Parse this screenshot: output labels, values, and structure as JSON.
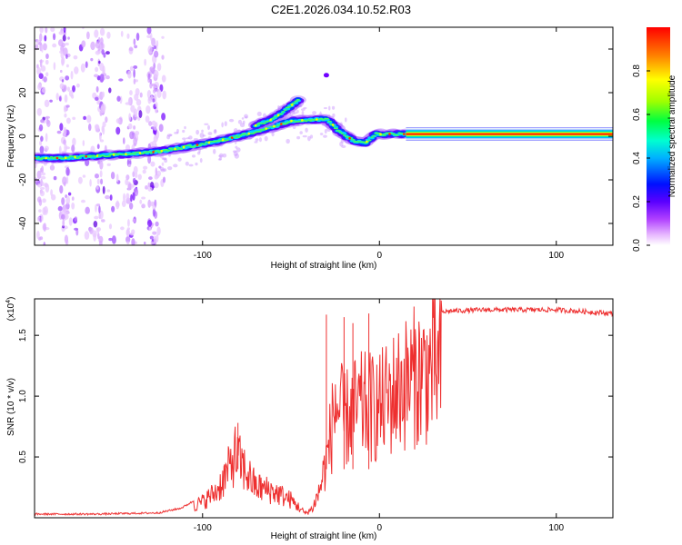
{
  "title": "C2E1.2026.034.10.52.R03",
  "chart_data": [
    {
      "type": "heatmap",
      "name": "spectrogram",
      "xlabel": "Height of straight line (km)",
      "ylabel": "Frequency (Hz)",
      "xlim": [
        -195,
        132
      ],
      "ylim": [
        -50,
        50
      ],
      "x_ticks": [
        -100,
        0,
        100
      ],
      "y_ticks": [
        -40,
        -20,
        0,
        20,
        40
      ],
      "colorbar": {
        "label": "Normalized spectral amplitude",
        "range": [
          0,
          1
        ],
        "ticks": [
          0.0,
          0.2,
          0.4,
          0.6,
          0.8
        ],
        "colors": [
          "#ffffff",
          "#d070ff",
          "#6a00ff",
          "#0000ff",
          "#00c8ff",
          "#00ff80",
          "#aaff00",
          "#ffff00",
          "#ff8000",
          "#ff0000"
        ]
      },
      "tracks": [
        {
          "name": "main-track",
          "points": [
            [
              -195,
              -10
            ],
            [
              -180,
              -10
            ],
            [
              -160,
              -9
            ],
            [
              -140,
              -8
            ],
            [
              -125,
              -7
            ],
            [
              -110,
              -5
            ],
            [
              -90,
              -2
            ],
            [
              -70,
              2
            ],
            [
              -50,
              7
            ],
            [
              -30,
              8
            ],
            [
              -22,
              2
            ],
            [
              -15,
              -2
            ],
            [
              -8,
              -3
            ],
            [
              -2,
              1
            ],
            [
              5,
              1
            ],
            [
              15,
              1
            ],
            [
              132,
              1
            ]
          ]
        },
        {
          "name": "upper-branch",
          "points": [
            [
              -70,
              5
            ],
            [
              -60,
              8
            ],
            [
              -50,
              14
            ],
            [
              -45,
              17
            ]
          ]
        }
      ],
      "outlier": {
        "x": -30,
        "y": 28
      },
      "noise_region_x": [
        -195,
        -120
      ]
    },
    {
      "type": "line",
      "name": "snr",
      "xlabel": "Height of straight line (km)",
      "ylabel": "SNR (10 * v/v)",
      "y_multiplier": "(x10",
      "y_multiplier_exp": "4",
      "y_multiplier_close": ")",
      "xlim": [
        -195,
        132
      ],
      "ylim": [
        0,
        1.8
      ],
      "x_ticks": [
        -100,
        0,
        100
      ],
      "y_ticks": [
        0.5,
        1.0,
        1.5
      ],
      "color": "#ee3030",
      "envelope": [
        [
          -195,
          0.03
        ],
        [
          -160,
          0.03
        ],
        [
          -125,
          0.04
        ],
        [
          -112,
          0.08
        ],
        [
          -100,
          0.18
        ],
        [
          -92,
          0.3
        ],
        [
          -85,
          0.55
        ],
        [
          -82,
          0.72
        ],
        [
          -78,
          0.6
        ],
        [
          -70,
          0.35
        ],
        [
          -60,
          0.3
        ],
        [
          -50,
          0.2
        ],
        [
          -42,
          0.05
        ],
        [
          -38,
          0.1
        ],
        [
          -34,
          0.3
        ],
        [
          -30,
          0.65
        ],
        [
          -27,
          1.0
        ],
        [
          -25,
          1.3
        ],
        [
          -20,
          1.1
        ],
        [
          -15,
          1.2
        ],
        [
          -10,
          1.25
        ],
        [
          -5,
          1.25
        ],
        [
          0,
          1.25
        ],
        [
          5,
          1.35
        ],
        [
          10,
          1.45
        ],
        [
          20,
          1.6
        ],
        [
          30,
          1.68
        ],
        [
          40,
          1.7
        ],
        [
          60,
          1.71
        ],
        [
          100,
          1.71
        ],
        [
          132,
          1.68
        ]
      ],
      "spikes": [
        [
          -30,
          1.67
        ],
        [
          -20,
          1.65
        ],
        [
          -15,
          1.6
        ],
        [
          -6,
          1.68
        ],
        [
          -80,
          0.78
        ]
      ]
    }
  ]
}
